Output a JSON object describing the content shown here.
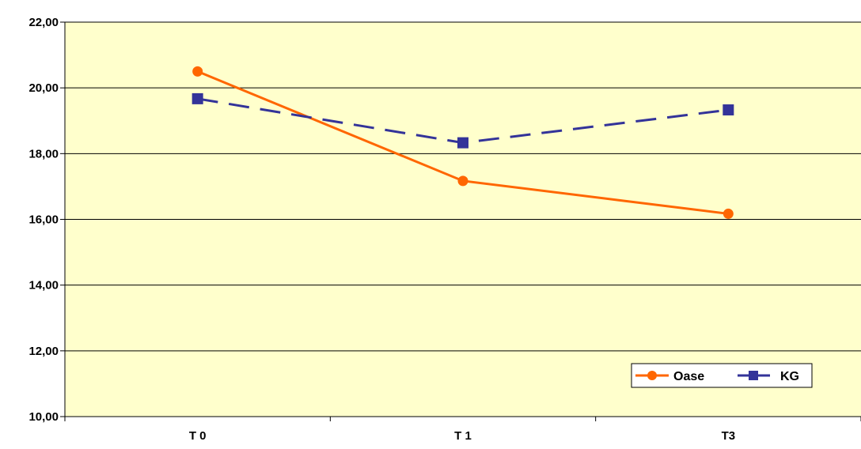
{
  "chart_data": {
    "type": "line",
    "categories": [
      "T 0",
      "T 1",
      "T3"
    ],
    "series": [
      {
        "name": "Oase",
        "values": [
          20.5,
          17.17,
          16.17
        ],
        "color": "#FF6600",
        "marker": "circle",
        "style": "solid"
      },
      {
        "name": "KG",
        "values": [
          19.67,
          18.33,
          19.33
        ],
        "color": "#333399",
        "marker": "square",
        "style": "dashed"
      }
    ],
    "ylim": [
      10,
      22
    ],
    "yticks": [
      "10,00",
      "12,00",
      "14,00",
      "16,00",
      "18,00",
      "20,00",
      "22,00"
    ],
    "grid": true,
    "plot_background": "#FFFFCC",
    "legend_position": "bottom-right"
  }
}
